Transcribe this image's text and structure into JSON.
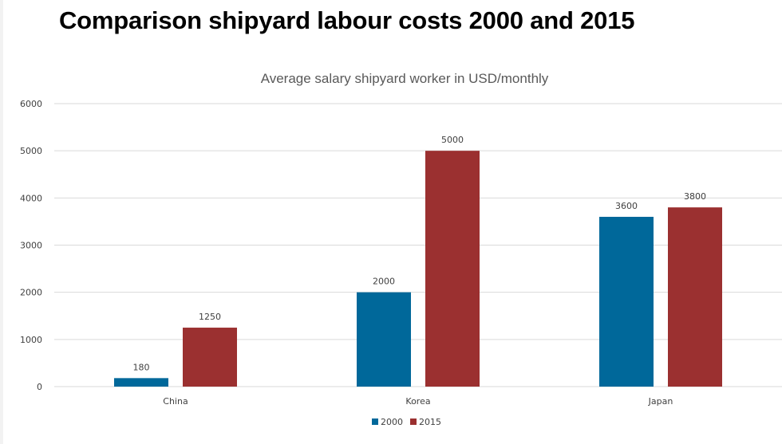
{
  "page": {
    "title": "Comparison shipyard labour costs 2000 and 2015"
  },
  "chart_data": {
    "type": "bar",
    "title": "Average salary shipyard worker in USD/monthly",
    "xlabel": "",
    "ylabel": "",
    "categories": [
      "China",
      "Korea",
      "Japan"
    ],
    "series": [
      {
        "name": "2000",
        "color": "#00689a",
        "values": [
          180,
          2000,
          3600
        ]
      },
      {
        "name": "2015",
        "color": "#9b3030",
        "values": [
          1250,
          5000,
          3800
        ]
      }
    ],
    "ylim": [
      0,
      6000
    ],
    "yticks": [
      0,
      1000,
      2000,
      3000,
      4000,
      5000,
      6000
    ],
    "grid": true,
    "legend_position": "bottom",
    "gridline_color": "#d9d9d9"
  }
}
